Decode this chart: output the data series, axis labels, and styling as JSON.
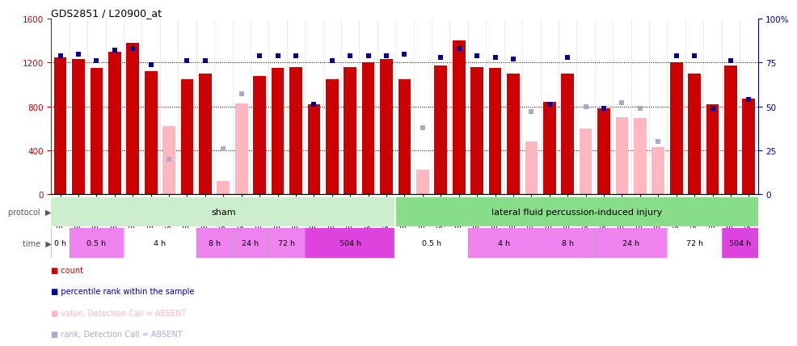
{
  "title": "GDS2851 / L20900_at",
  "samples": [
    "GSM44478",
    "GSM44496",
    "GSM44513",
    "GSM44488",
    "GSM44489",
    "GSM44494",
    "GSM44509",
    "GSM44486",
    "GSM44511",
    "GSM44528",
    "GSM44529",
    "GSM44467",
    "GSM44530",
    "GSM44490",
    "GSM44508",
    "GSM44483",
    "GSM44485",
    "GSM44495",
    "GSM44507",
    "GSM44473",
    "GSM44480",
    "GSM44492",
    "GSM44500",
    "GSM44533",
    "GSM44466",
    "GSM44498",
    "GSM44667",
    "GSM44491",
    "GSM44531",
    "GSM44532",
    "GSM44477",
    "GSM44482",
    "GSM44493",
    "GSM44484",
    "GSM44520",
    "GSM44549",
    "GSM44471",
    "GSM44481",
    "GSM44497"
  ],
  "count_values": [
    1250,
    1230,
    1150,
    1300,
    1380,
    1120,
    null,
    1050,
    1100,
    null,
    null,
    1080,
    1150,
    1160,
    820,
    1050,
    1160,
    1200,
    1230,
    1050,
    null,
    1170,
    1400,
    1160,
    1150,
    1100,
    null,
    840,
    1100,
    null,
    780,
    null,
    null,
    null,
    1200,
    1100,
    820,
    1170,
    870
  ],
  "absent_values": [
    null,
    null,
    null,
    null,
    null,
    null,
    620,
    null,
    null,
    120,
    830,
    null,
    null,
    null,
    null,
    null,
    null,
    null,
    null,
    null,
    220,
    null,
    null,
    null,
    null,
    null,
    480,
    null,
    null,
    600,
    null,
    700,
    690,
    430,
    null,
    null,
    null,
    null,
    null
  ],
  "rank_present": [
    79,
    80,
    76,
    82,
    83,
    74,
    null,
    76,
    76,
    null,
    null,
    79,
    79,
    79,
    51,
    76,
    79,
    79,
    79,
    80,
    null,
    78,
    83,
    79,
    78,
    77,
    null,
    51,
    78,
    null,
    49,
    null,
    null,
    null,
    79,
    79,
    49,
    76,
    54
  ],
  "rank_absent": [
    null,
    null,
    null,
    null,
    null,
    null,
    20,
    null,
    null,
    26,
    57,
    null,
    null,
    null,
    null,
    null,
    null,
    null,
    null,
    null,
    38,
    null,
    null,
    null,
    null,
    null,
    47,
    null,
    null,
    50,
    null,
    52,
    49,
    30,
    null,
    null,
    null,
    null,
    null
  ],
  "sham_count": 19,
  "time_groups": [
    {
      "label": "0 h",
      "start": 0,
      "end": 1,
      "bg": "#ffffff"
    },
    {
      "label": "0.5 h",
      "start": 1,
      "end": 4,
      "bg": "#ee82ee"
    },
    {
      "label": "4 h",
      "start": 4,
      "end": 8,
      "bg": "#ffffff"
    },
    {
      "label": "8 h",
      "start": 8,
      "end": 10,
      "bg": "#ee82ee"
    },
    {
      "label": "24 h",
      "start": 10,
      "end": 12,
      "bg": "#ee82ee"
    },
    {
      "label": "72 h",
      "start": 12,
      "end": 14,
      "bg": "#ee82ee"
    },
    {
      "label": "504 h",
      "start": 14,
      "end": 19,
      "bg": "#dd44dd"
    },
    {
      "label": "0.5 h",
      "start": 19,
      "end": 23,
      "bg": "#ffffff"
    },
    {
      "label": "4 h",
      "start": 23,
      "end": 27,
      "bg": "#ee82ee"
    },
    {
      "label": "8 h",
      "start": 27,
      "end": 30,
      "bg": "#ee82ee"
    },
    {
      "label": "24 h",
      "start": 30,
      "end": 34,
      "bg": "#ee82ee"
    },
    {
      "label": "72 h",
      "start": 34,
      "end": 37,
      "bg": "#ffffff"
    },
    {
      "label": "504 h",
      "start": 37,
      "end": 39,
      "bg": "#dd44dd"
    }
  ],
  "red_color": "#cc0000",
  "pink_color": "#ffb6c1",
  "blue_color": "#000099",
  "lightblue_color": "#aaaacc",
  "sham_color": "#cceecc",
  "injury_color": "#88dd88",
  "proto_bg": "#cccccc",
  "time_bg": "#cccccc"
}
